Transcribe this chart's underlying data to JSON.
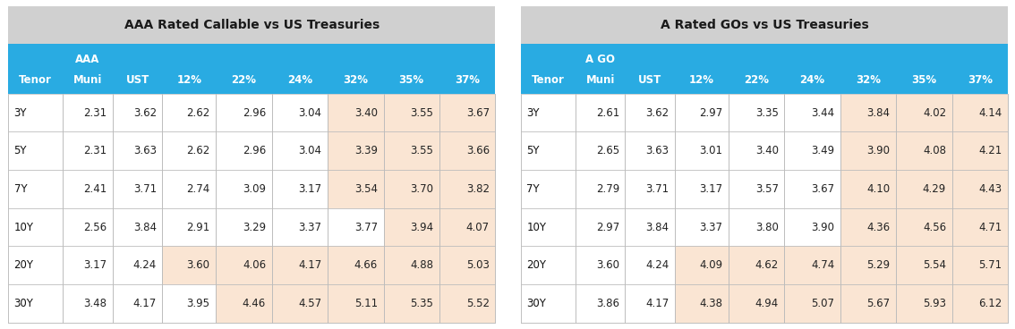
{
  "table1_title": "AAA Rated Callable vs US Treasuries",
  "table2_title": "A Rated GOs vs US Treasuries",
  "col_headers1_line1": [
    "",
    "AAA",
    "",
    "",
    "",
    "",
    "",
    "",
    ""
  ],
  "col_headers1_line2": [
    "Tenor",
    "Muni",
    "UST",
    "12%",
    "22%",
    "24%",
    "32%",
    "35%",
    "37%"
  ],
  "col_headers2_line1": [
    "",
    "A GO",
    "",
    "",
    "",
    "",
    "",
    "",
    ""
  ],
  "col_headers2_line2": [
    "Tenor",
    "Muni",
    "UST",
    "12%",
    "22%",
    "24%",
    "32%",
    "35%",
    "37%"
  ],
  "rows1": [
    [
      "3Y",
      "2.31",
      "3.62",
      "2.62",
      "2.96",
      "3.04",
      "3.40",
      "3.55",
      "3.67"
    ],
    [
      "5Y",
      "2.31",
      "3.63",
      "2.62",
      "2.96",
      "3.04",
      "3.39",
      "3.55",
      "3.66"
    ],
    [
      "7Y",
      "2.41",
      "3.71",
      "2.74",
      "3.09",
      "3.17",
      "3.54",
      "3.70",
      "3.82"
    ],
    [
      "10Y",
      "2.56",
      "3.84",
      "2.91",
      "3.29",
      "3.37",
      "3.77",
      "3.94",
      "4.07"
    ],
    [
      "20Y",
      "3.17",
      "4.24",
      "3.60",
      "4.06",
      "4.17",
      "4.66",
      "4.88",
      "5.03"
    ],
    [
      "30Y",
      "3.48",
      "4.17",
      "3.95",
      "4.46",
      "4.57",
      "5.11",
      "5.35",
      "5.52"
    ]
  ],
  "rows2": [
    [
      "3Y",
      "2.61",
      "3.62",
      "2.97",
      "3.35",
      "3.44",
      "3.84",
      "4.02",
      "4.14"
    ],
    [
      "5Y",
      "2.65",
      "3.63",
      "3.01",
      "3.40",
      "3.49",
      "3.90",
      "4.08",
      "4.21"
    ],
    [
      "7Y",
      "2.79",
      "3.71",
      "3.17",
      "3.57",
      "3.67",
      "4.10",
      "4.29",
      "4.43"
    ],
    [
      "10Y",
      "2.97",
      "3.84",
      "3.37",
      "3.80",
      "3.90",
      "4.36",
      "4.56",
      "4.71"
    ],
    [
      "20Y",
      "3.60",
      "4.24",
      "4.09",
      "4.62",
      "4.74",
      "5.29",
      "5.54",
      "5.71"
    ],
    [
      "30Y",
      "3.86",
      "4.17",
      "4.38",
      "4.94",
      "5.07",
      "5.67",
      "5.93",
      "6.12"
    ]
  ],
  "highlight_cols1": {
    "3Y": [
      6,
      7,
      8
    ],
    "5Y": [
      6,
      7,
      8
    ],
    "7Y": [
      6,
      7,
      8
    ],
    "10Y": [
      7,
      8
    ],
    "20Y": [
      3,
      4,
      5,
      6,
      7,
      8
    ],
    "30Y": [
      4,
      5,
      6,
      7,
      8
    ]
  },
  "highlight_cols2": {
    "3Y": [
      6,
      7,
      8
    ],
    "5Y": [
      6,
      7,
      8
    ],
    "7Y": [
      6,
      7,
      8
    ],
    "10Y": [
      6,
      7,
      8
    ],
    "20Y": [
      3,
      4,
      5,
      6,
      7,
      8
    ],
    "30Y": [
      3,
      4,
      5,
      6,
      7,
      8
    ]
  },
  "header_bg": "#29ABE2",
  "header_text": "#FFFFFF",
  "title_bg": "#D0D0D0",
  "title_text": "#1a1a1a",
  "highlight_bg": "#FAE5D3",
  "cell_bg": "#FFFFFF",
  "grid_color": "#BBBBBB",
  "data_text_color": "#222222",
  "row_label_color": "#111111",
  "bg_color": "#FFFFFF",
  "gap_color": "#FFFFFF"
}
